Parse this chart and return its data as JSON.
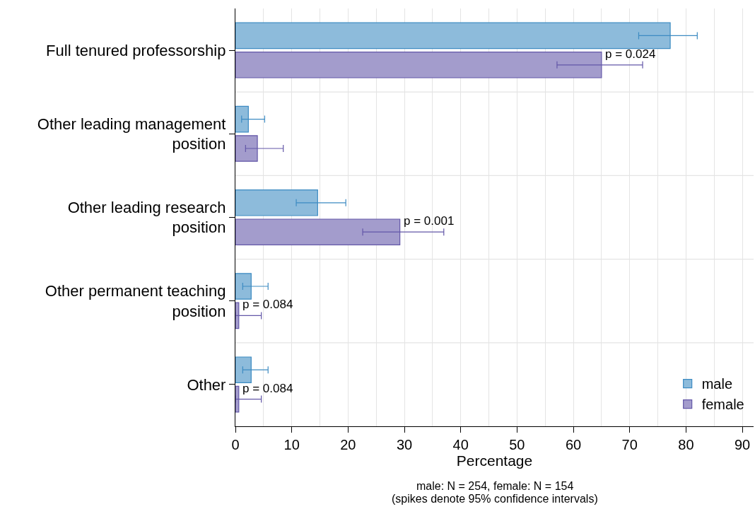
{
  "chart_data": {
    "type": "bar",
    "orientation": "horizontal",
    "xlabel": "Percentage",
    "categories": [
      "Full tenured professorship",
      "Other leading management position",
      "Other leading research position",
      "Other permanent teaching position",
      "Other"
    ],
    "series": [
      {
        "name": "male",
        "color": "#8dbbdb",
        "values": [
          77.2,
          2.3,
          14.6,
          2.8,
          2.8
        ],
        "errors": [
          [
            71.6,
            82.0
          ],
          [
            1.1,
            5.2
          ],
          [
            10.8,
            19.6
          ],
          [
            1.3,
            5.8
          ],
          [
            1.3,
            5.8
          ]
        ]
      },
      {
        "name": "female",
        "color": "#a39ccc",
        "values": [
          65.0,
          3.9,
          29.2,
          0.6,
          0.6
        ],
        "errors": [
          [
            57.1,
            72.3
          ],
          [
            1.8,
            8.5
          ],
          [
            22.6,
            37.0
          ],
          [
            0,
            4.6
          ],
          [
            0,
            4.6
          ]
        ]
      }
    ],
    "xlim": [
      0,
      92
    ],
    "xticks": [
      0,
      10,
      20,
      30,
      40,
      50,
      60,
      70,
      80,
      90
    ],
    "grid": true,
    "legend": "bottom right",
    "annotations": [
      {
        "text": "p = 0.024",
        "x": 65.0,
        "y": "Full tenured professorship"
      },
      {
        "text": "p = 0.001",
        "x": 29.2,
        "y": "Other leading research position"
      },
      {
        "text": "p = 0.084",
        "x": 0.6,
        "y": "Other permanent teaching position"
      },
      {
        "text": "p = 0.084",
        "x": 0.6,
        "y": "Other"
      },
      "male: N = 254, female: N = 154",
      "(spikes denote 95% confidence intervals)"
    ]
  }
}
